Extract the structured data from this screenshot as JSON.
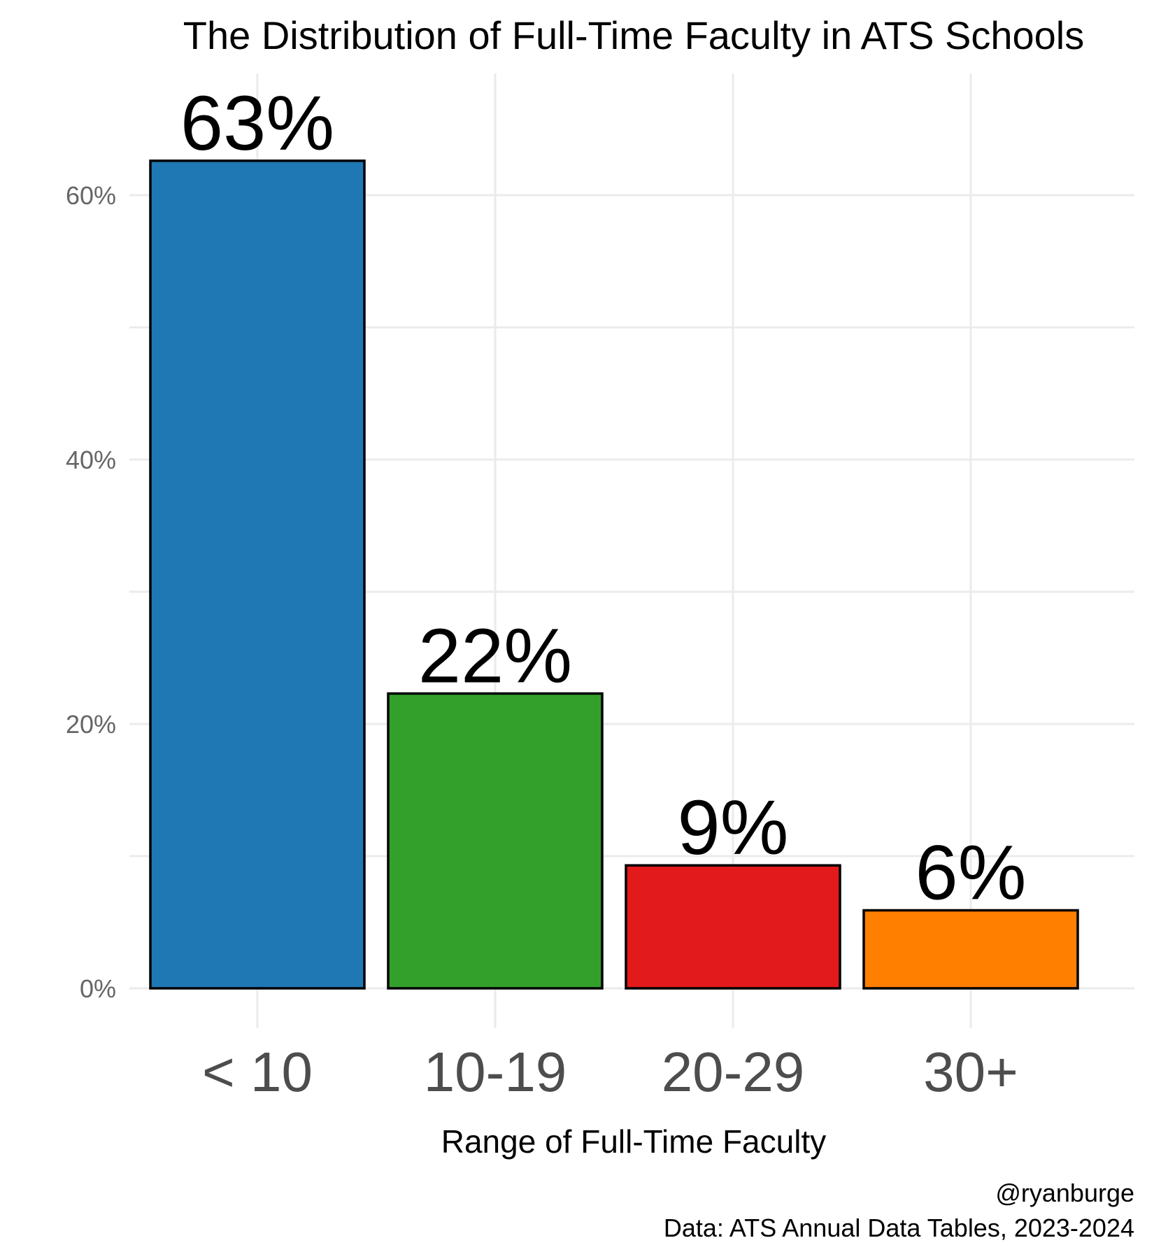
{
  "chart_data": {
    "type": "bar",
    "title": "The Distribution of Full-Time Faculty in ATS Schools",
    "xlabel": "Range of Full-Time Faculty",
    "ylabel": "",
    "categories": [
      "< 10",
      "10-19",
      "20-29",
      "30+"
    ],
    "values": [
      62.6,
      22.3,
      9.3,
      5.9
    ],
    "data_labels": [
      "63%",
      "22%",
      "9%",
      "6%"
    ],
    "colors": [
      "#1f78b4",
      "#33a02c",
      "#e31a1c",
      "#ff7f00"
    ],
    "ylim": [
      0,
      70
    ],
    "yticks": [
      0,
      20,
      40,
      60
    ],
    "ytick_labels": [
      "0%",
      "20%",
      "40%",
      "60%"
    ],
    "grid": true,
    "legend": "none"
  },
  "caption": {
    "handle": "@ryanburge",
    "source": "Data: ATS Annual Data Tables, 2023-2024"
  },
  "colors": {
    "grid": "#ebebeb",
    "bar_outline": "#000000",
    "tick_text": "#666666",
    "xtick_text": "#4d4d4d"
  }
}
